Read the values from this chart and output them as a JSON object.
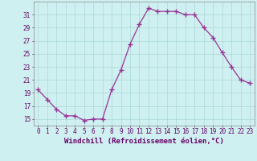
{
  "x": [
    0,
    1,
    2,
    3,
    4,
    5,
    6,
    7,
    8,
    9,
    10,
    11,
    12,
    13,
    14,
    15,
    16,
    17,
    18,
    19,
    20,
    21,
    22,
    23
  ],
  "y": [
    19.5,
    18.0,
    16.5,
    15.5,
    15.5,
    14.8,
    15.0,
    15.0,
    19.5,
    22.5,
    26.5,
    29.5,
    32.0,
    31.5,
    31.5,
    31.5,
    31.0,
    31.0,
    29.0,
    27.5,
    25.2,
    23.0,
    21.0,
    20.5
  ],
  "line_color": "#993399",
  "marker": "+",
  "markersize": 4,
  "markeredgewidth": 1.0,
  "linewidth": 0.9,
  "bg_color": "#cff0f0",
  "grid_color": "#aad8d8",
  "xlabel": "Windchill (Refroidissement éolien,°C)",
  "xlim": [
    -0.5,
    23.5
  ],
  "ylim": [
    14,
    33
  ],
  "yticks": [
    15,
    17,
    19,
    21,
    23,
    25,
    27,
    29,
    31
  ],
  "xticks": [
    0,
    1,
    2,
    3,
    4,
    5,
    6,
    7,
    8,
    9,
    10,
    11,
    12,
    13,
    14,
    15,
    16,
    17,
    18,
    19,
    20,
    21,
    22,
    23
  ],
  "tick_color": "#660066",
  "label_fontsize": 6.5,
  "tick_fontsize": 5.5,
  "spine_color": "#888888"
}
